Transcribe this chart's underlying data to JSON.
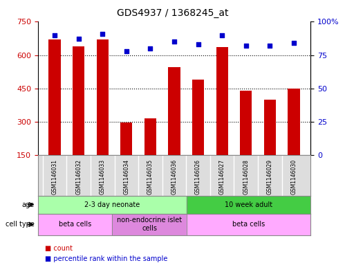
{
  "title": "GDS4937 / 1368245_at",
  "samples": [
    "GSM1146031",
    "GSM1146032",
    "GSM1146033",
    "GSM1146034",
    "GSM1146035",
    "GSM1146036",
    "GSM1146026",
    "GSM1146027",
    "GSM1146028",
    "GSM1146029",
    "GSM1146030"
  ],
  "counts": [
    670,
    640,
    670,
    295,
    315,
    545,
    490,
    635,
    440,
    400,
    450
  ],
  "percentiles": [
    90,
    87,
    91,
    78,
    80,
    85,
    83,
    90,
    82,
    82,
    84
  ],
  "ylim_left": [
    150,
    750
  ],
  "ylim_right": [
    0,
    100
  ],
  "yticks_left": [
    150,
    300,
    450,
    600,
    750
  ],
  "yticks_right": [
    0,
    25,
    50,
    75,
    100
  ],
  "ytick_labels_left": [
    "150",
    "300",
    "450",
    "600",
    "750"
  ],
  "ytick_labels_right": [
    "0",
    "25",
    "50",
    "75",
    "100%"
  ],
  "bar_color": "#cc0000",
  "dot_color": "#0000cc",
  "bar_bottom": 150,
  "age_groups": [
    {
      "label": "2-3 day neonate",
      "start": 0,
      "end": 6,
      "color": "#aaffaa"
    },
    {
      "label": "10 week adult",
      "start": 6,
      "end": 11,
      "color": "#44cc44"
    }
  ],
  "cell_type_groups": [
    {
      "label": "beta cells",
      "start": 0,
      "end": 3,
      "color": "#ffaaff"
    },
    {
      "label": "non-endocrine islet\ncells",
      "start": 3,
      "end": 6,
      "color": "#dd88dd"
    },
    {
      "label": "beta cells",
      "start": 6,
      "end": 11,
      "color": "#ffaaff"
    }
  ],
  "bg_color": "#ffffff",
  "plot_bg_color": "#ffffff",
  "grid_color": "#000000",
  "axis_label_color_left": "#cc0000",
  "axis_label_color_right": "#0000cc",
  "sample_bg_color": "#dddddd"
}
